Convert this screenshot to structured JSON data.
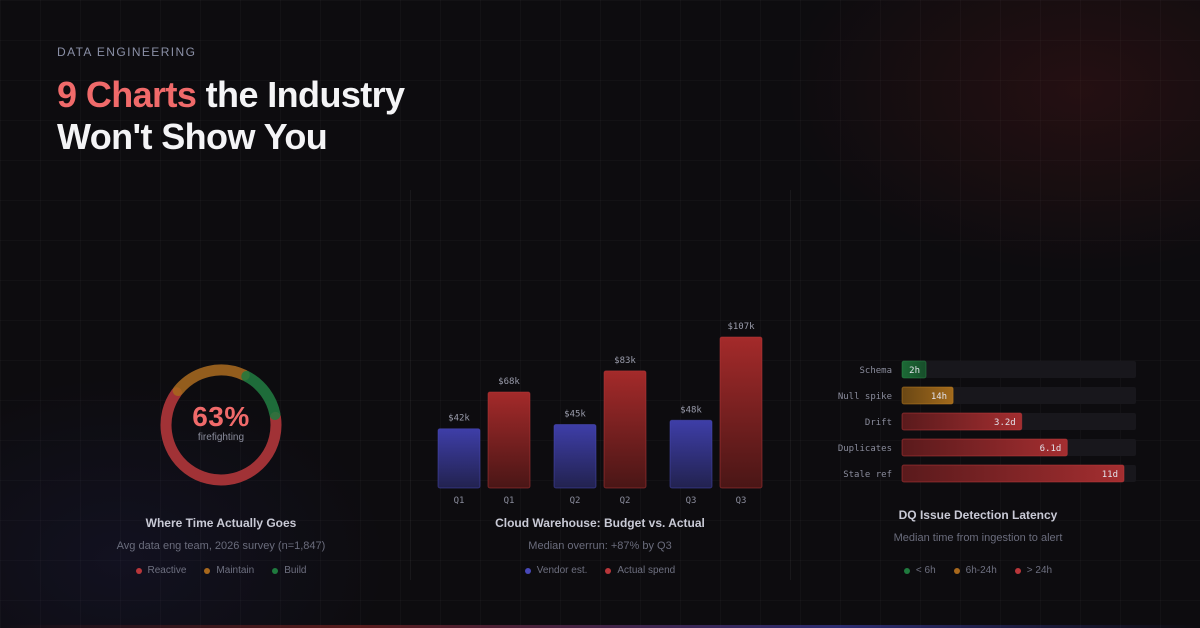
{
  "header": {
    "eyebrow": "DATA ENGINEERING",
    "title_accent": "9 Charts",
    "title_rest": " the Industry",
    "title_line2": "Won't Show You"
  },
  "chart_data": [
    {
      "type": "pie",
      "title": "Where Time Actually Goes",
      "subtitle": "Avg data eng team, 2026 survey (n=1,847)",
      "center_value": "63%",
      "center_label": "firefighting",
      "slices": [
        {
          "name": "Reactive",
          "value": 63,
          "color": "#b9363a"
        },
        {
          "name": "Maintain",
          "value": 22,
          "color": "#a8681c"
        },
        {
          "name": "Build",
          "value": 15,
          "color": "#1f7a3e"
        }
      ],
      "legend": [
        "Reactive",
        "Maintain",
        "Build"
      ]
    },
    {
      "type": "bar",
      "title": "Cloud Warehouse: Budget vs. Actual",
      "subtitle": "Median overrun: +87% by Q3",
      "categories": [
        "Q1",
        "Q2",
        "Q3"
      ],
      "series": [
        {
          "name": "Vendor est.",
          "values": [
            42,
            45,
            48
          ],
          "labels": [
            "$42k",
            "$45k",
            "$48k"
          ],
          "color": "#3c3ca0"
        },
        {
          "name": "Actual spend",
          "values": [
            68,
            83,
            107
          ],
          "labels": [
            "$68k",
            "$83k",
            "$107k"
          ],
          "color": "#a62a2a"
        }
      ],
      "legend": [
        "Vendor est.",
        "Actual spend"
      ]
    },
    {
      "type": "bar",
      "orientation": "horizontal",
      "title": "DQ Issue Detection Latency",
      "subtitle": "Median time from ingestion to alert",
      "unit": "hours",
      "categories": [
        "Schema",
        "Null spike",
        "Drift",
        "Duplicates",
        "Stale ref"
      ],
      "values": [
        2,
        14,
        76.8,
        146.4,
        264
      ],
      "labels": [
        "2h",
        "14h",
        "3.2d",
        "6.1d",
        "11d"
      ],
      "bins": [
        "green",
        "amber",
        "red",
        "red",
        "red"
      ],
      "legend": [
        "< 6h",
        "6h-24h",
        "> 24h"
      ]
    }
  ],
  "colors": {
    "green": "#1f7a3e",
    "amber": "#a8681c",
    "red": "#b9363a",
    "blue": "#4848b8",
    "accent": "#f06a6a"
  }
}
